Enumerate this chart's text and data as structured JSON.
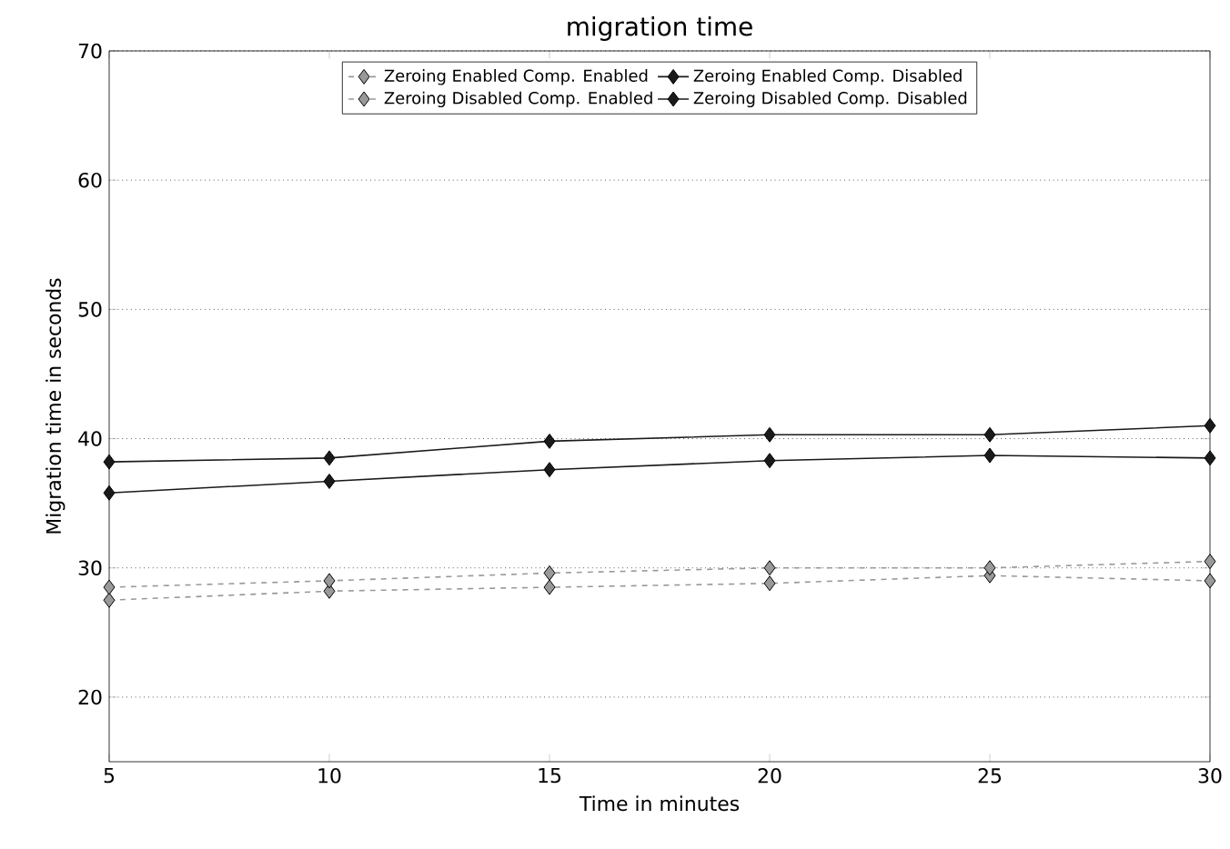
{
  "chart_data": {
    "type": "line",
    "title": "migration time",
    "xlabel": "Time in minutes",
    "ylabel": "Migration time in seconds",
    "x": [
      5,
      10,
      15,
      20,
      25,
      30
    ],
    "series": [
      {
        "name": "Zeroing Enabled Comp. Enabled",
        "color": "#999999",
        "line_style": "dashed",
        "values": [
          27.5,
          28.2,
          28.5,
          28.8,
          29.4,
          29.0
        ]
      },
      {
        "name": "Zeroing Disabled Comp. Enabled",
        "color": "#999999",
        "line_style": "dashed",
        "values": [
          28.5,
          29.0,
          29.6,
          30.0,
          30.0,
          30.5
        ]
      },
      {
        "name": "Zeroing Enabled Comp. Disabled",
        "color": "#1a1a1a",
        "line_style": "solid",
        "values": [
          35.8,
          36.7,
          37.6,
          38.3,
          38.7,
          38.5
        ]
      },
      {
        "name": "Zeroing Disabled Comp. Disabled",
        "color": "#1a1a1a",
        "line_style": "solid",
        "values": [
          38.2,
          38.5,
          39.8,
          40.3,
          40.3,
          41.0
        ]
      }
    ],
    "xlim": [
      5,
      30
    ],
    "ylim": [
      15,
      70
    ],
    "xticks": [
      5,
      10,
      15,
      20,
      25,
      30
    ],
    "yticks": [
      20,
      30,
      40,
      50,
      60,
      70
    ],
    "grid": "y",
    "legend": "top",
    "marker": "diamond"
  }
}
